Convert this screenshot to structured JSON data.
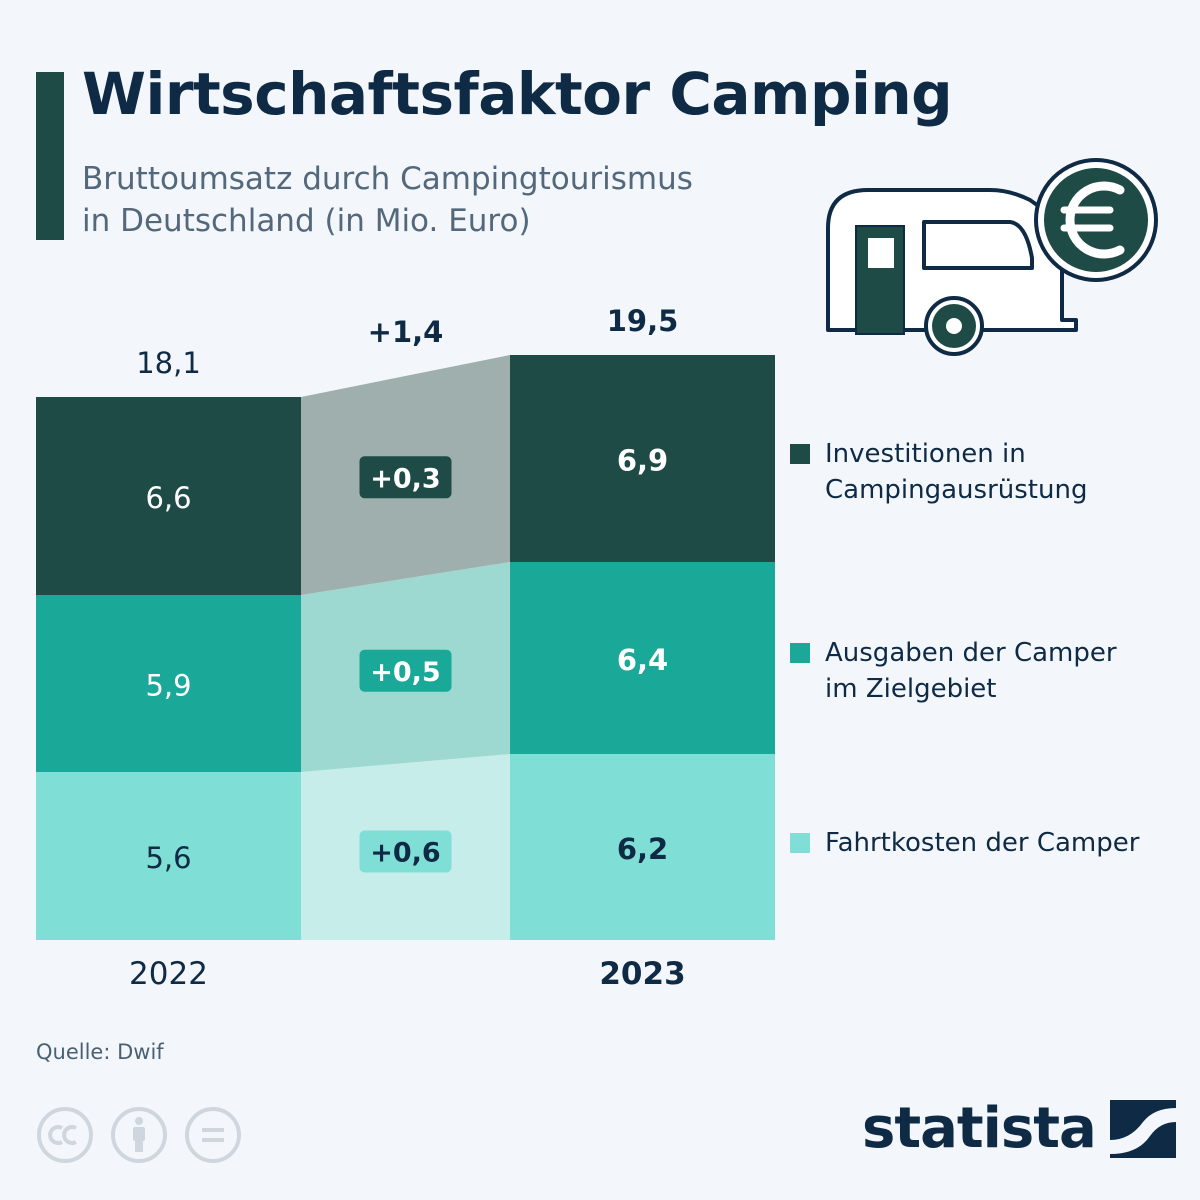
{
  "header": {
    "title": "Wirtschaftsfaktor Camping",
    "subtitle_line1": "Bruttoumsatz durch Campingtourismus",
    "subtitle_line2": "in Deutschland (in Mio. Euro)"
  },
  "chart_data": {
    "type": "bar",
    "stacked": true,
    "categories": [
      "2022",
      "2023"
    ],
    "series": [
      {
        "name": "Fahrtkosten der Camper",
        "values": [
          5.6,
          6.2
        ],
        "labels": [
          "5,6",
          "6,2"
        ],
        "change_label": "+0,6",
        "color": "#7fded5",
        "bridge_color": "#c6ede9",
        "badge_color": "#7fded5",
        "badge_text_color": "#0f2a44"
      },
      {
        "name": "Ausgaben der Camper im Zielgebiet",
        "values": [
          5.9,
          6.4
        ],
        "labels": [
          "5,9",
          "6,4"
        ],
        "change_label": "+0,5",
        "color": "#1aa898",
        "bridge_color": "#9ed9d1",
        "badge_color": "#1aa898",
        "badge_text_color": "#ffffff"
      },
      {
        "name": "Investitionen in Campingausrüstung",
        "values": [
          6.6,
          6.9
        ],
        "labels": [
          "6,6",
          "6,9"
        ],
        "change_label": "+0,3",
        "color": "#1f4b46",
        "bridge_color": "#9eafad",
        "badge_color": "#1f4b46",
        "badge_text_color": "#ffffff"
      }
    ],
    "totals": [
      18.1,
      19.5
    ],
    "total_labels": [
      "18,1",
      "19,5"
    ],
    "total_change_label": "+1,4",
    "highlighted_category": "2023",
    "legend_position": "right",
    "grid": false
  },
  "legend": {
    "items": [
      {
        "line1": "Investitionen in",
        "line2": "Campingausrüstung",
        "color": "#1f4b46"
      },
      {
        "line1": "Ausgaben der Camper",
        "line2": "im Zielgebiet",
        "color": "#1aa898"
      },
      {
        "line1": "Fahrtkosten der Camper",
        "line2": "",
        "color": "#7fded5"
      }
    ]
  },
  "footer": {
    "source": "Quelle: Dwif",
    "brand": "statista"
  },
  "icons": {
    "camper": "camper-trailer-icon",
    "currency": "euro-coin-icon",
    "license": [
      "cc-icon",
      "attribution-icon",
      "no-derivatives-icon"
    ]
  },
  "colors": {
    "accent": "#1f4b46",
    "text": "#0f2a44",
    "background": "#f3f7fb"
  }
}
